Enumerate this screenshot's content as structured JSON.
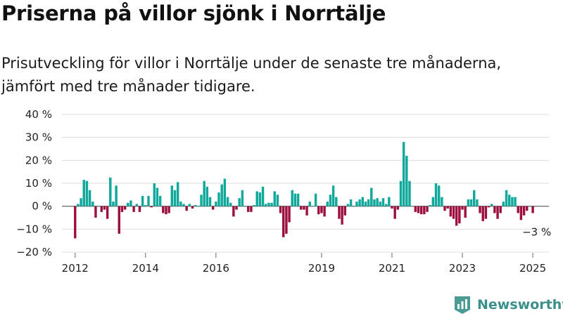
{
  "header": {
    "title": "Priserna på villor sjönk i Norrtälje",
    "subtitle": "Prisutveckling för villor i Norrtälje under de senaste tre månaderna, jämfört med tre månader tidigare."
  },
  "brand": {
    "name": "Newsworthy",
    "icon": "newsworthy-logo-icon"
  },
  "colors": {
    "positive": "#0fa89b",
    "negative": "#9c0f3f",
    "grid": "#dddddd",
    "text": "#222222"
  },
  "chart_data": {
    "type": "bar",
    "x_start": "2011-09",
    "x_end": "2025-07",
    "ylim": [
      -20,
      40
    ],
    "yticks": [
      -20,
      -10,
      0,
      10,
      20,
      30,
      40
    ],
    "ytick_labels": [
      "−20 %",
      "−10 %",
      "0 %",
      "10 %",
      "20 %",
      "30 %",
      "40 %"
    ],
    "xticks": [
      {
        "date": "2012-01",
        "label": "2012"
      },
      {
        "date": "2014-01",
        "label": "2014"
      },
      {
        "date": "2016-01",
        "label": "2016"
      },
      {
        "date": "2019-01",
        "label": "2019"
      },
      {
        "date": "2021-01",
        "label": "2021"
      },
      {
        "date": "2023-01",
        "label": "2023"
      },
      {
        "date": "2025-01",
        "label": "2025"
      }
    ],
    "annotation": {
      "label": "−3 %",
      "date": "2025-01",
      "value": -3
    },
    "series": [
      {
        "dates": [
          "2012-01",
          "2012-02",
          "2012-03",
          "2012-04",
          "2012-05",
          "2012-06",
          "2012-07",
          "2012-08",
          "2012-09",
          "2012-10",
          "2012-11",
          "2012-12",
          "2013-01",
          "2013-02",
          "2013-03",
          "2013-04",
          "2013-05",
          "2013-06",
          "2013-07",
          "2013-08",
          "2013-09",
          "2013-10",
          "2013-11",
          "2013-12",
          "2014-01",
          "2014-02",
          "2014-03",
          "2014-04",
          "2014-05",
          "2014-06",
          "2014-07",
          "2014-08",
          "2014-09",
          "2014-10",
          "2014-11",
          "2014-12",
          "2015-01",
          "2015-02",
          "2015-03",
          "2015-04",
          "2015-05",
          "2015-06",
          "2015-07",
          "2015-08",
          "2015-09",
          "2015-10",
          "2015-11",
          "2015-12",
          "2016-01",
          "2016-02",
          "2016-03",
          "2016-04",
          "2016-05",
          "2016-06",
          "2016-07",
          "2016-08",
          "2016-09",
          "2016-10",
          "2016-11",
          "2016-12",
          "2017-01",
          "2017-02",
          "2017-03",
          "2017-04",
          "2017-05",
          "2017-06",
          "2017-07",
          "2017-08",
          "2017-09",
          "2017-10",
          "2017-11",
          "2017-12",
          "2018-01",
          "2018-02",
          "2018-03",
          "2018-04",
          "2018-05",
          "2018-06",
          "2018-07",
          "2018-08",
          "2018-09",
          "2018-10",
          "2018-11",
          "2018-12",
          "2019-01",
          "2019-02",
          "2019-03",
          "2019-04",
          "2019-05",
          "2019-06",
          "2019-07",
          "2019-08",
          "2019-09",
          "2019-10",
          "2019-11",
          "2019-12",
          "2020-01",
          "2020-02",
          "2020-03",
          "2020-04",
          "2020-05",
          "2020-06",
          "2020-07",
          "2020-08",
          "2020-09",
          "2020-10",
          "2020-11",
          "2020-12",
          "2021-01",
          "2021-02",
          "2021-03",
          "2021-04",
          "2021-05",
          "2021-06",
          "2021-07",
          "2021-08",
          "2021-09",
          "2021-10",
          "2021-11",
          "2021-12",
          "2022-01",
          "2022-02",
          "2022-03",
          "2022-04",
          "2022-05",
          "2022-06",
          "2022-07",
          "2022-08",
          "2022-09",
          "2022-10",
          "2022-11",
          "2022-12",
          "2023-01",
          "2023-02",
          "2023-03",
          "2023-04",
          "2023-05",
          "2023-06",
          "2023-07",
          "2023-08",
          "2023-09",
          "2023-10",
          "2023-11",
          "2023-12",
          "2024-01",
          "2024-02",
          "2024-03",
          "2024-04",
          "2024-05",
          "2024-06",
          "2024-07",
          "2024-08",
          "2024-09",
          "2024-10",
          "2024-11",
          "2024-12",
          "2025-01"
        ],
        "values": [
          -14,
          1,
          3.5,
          11.5,
          11,
          7,
          2,
          -5,
          0,
          -2.5,
          -1.5,
          -5.5,
          12.5,
          2,
          9,
          -12,
          -2.5,
          -1.5,
          1.5,
          2.5,
          -2.5,
          1,
          -2.5,
          4.5,
          0.5,
          4.5,
          -0.5,
          10,
          8,
          4.5,
          -3,
          -3.5,
          -3,
          9,
          7,
          10.5,
          2,
          1,
          -2,
          1,
          -1,
          0.5,
          0,
          5,
          11,
          8.5,
          4,
          -1.5,
          2,
          6,
          9.5,
          12,
          4,
          1.5,
          -4.5,
          -1.5,
          3.5,
          7,
          0,
          -2.5,
          -2.5,
          0.5,
          6.5,
          6,
          8.5,
          1,
          1.5,
          1.5,
          6.5,
          5,
          -3,
          -13.5,
          -12,
          -7,
          7,
          5.5,
          5.5,
          -1.5,
          -1.5,
          -4,
          2,
          0,
          5.5,
          -3.5,
          -3,
          -4.5,
          2,
          5,
          9,
          4,
          -5.5,
          -8,
          -4,
          1,
          3,
          0,
          2,
          3,
          4,
          2,
          3,
          8,
          3,
          3.5,
          2,
          3.5,
          1,
          4,
          -1,
          -5.5,
          -1.5,
          11,
          28,
          22,
          11,
          0,
          -2.5,
          -3,
          -3.5,
          -3.5,
          -2.5,
          0.5,
          4,
          10,
          9,
          4,
          -2,
          -1,
          -4.5,
          -5.5,
          -8.5,
          -7.5,
          -1.5,
          -5,
          3,
          3,
          7,
          3,
          -3,
          -6.5,
          -5.5,
          -0.5,
          1,
          -3,
          -5.5,
          -3,
          2,
          7,
          5,
          4,
          4,
          -3,
          -6,
          -4,
          -2,
          0,
          -3
        ]
      }
    ]
  }
}
